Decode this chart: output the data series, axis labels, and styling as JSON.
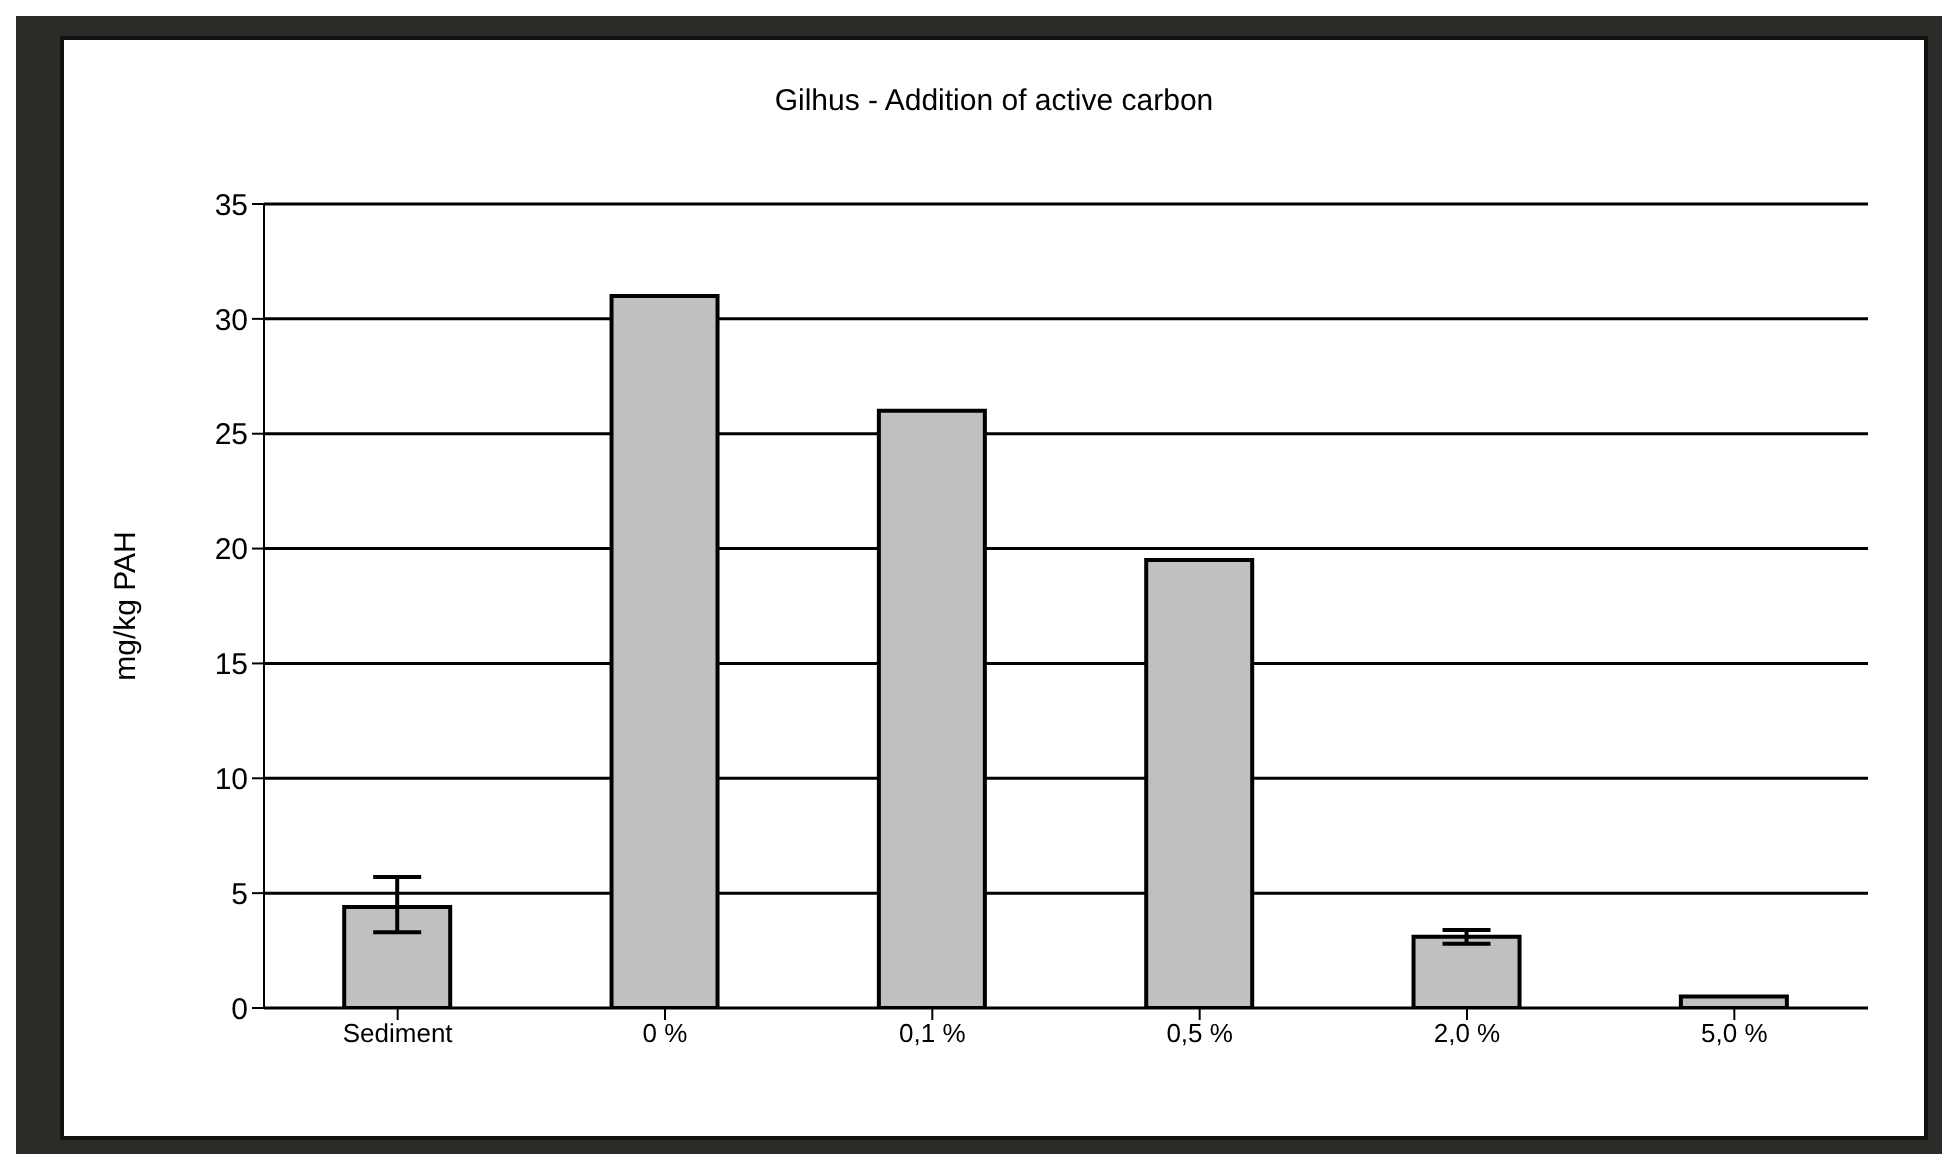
{
  "chart_data": {
    "type": "bar",
    "title": "Gilhus - Addition of active carbon",
    "ylabel": "mg/kg PAH",
    "categories": [
      "Sediment",
      "0 %",
      "0,1 %",
      "0,5 %",
      "2,0 %",
      "5,0 %"
    ],
    "values": [
      4.4,
      31.0,
      26.0,
      19.5,
      3.1,
      0.5
    ],
    "errors": [
      [
        3.3,
        5.7
      ],
      null,
      null,
      null,
      [
        2.8,
        3.4
      ],
      null
    ],
    "color": "#c0c0c0",
    "ylim": [
      0,
      35
    ],
    "yticks": [
      0,
      5,
      10,
      15,
      20,
      25,
      30,
      35
    ],
    "grid": "y",
    "legend": false
  }
}
